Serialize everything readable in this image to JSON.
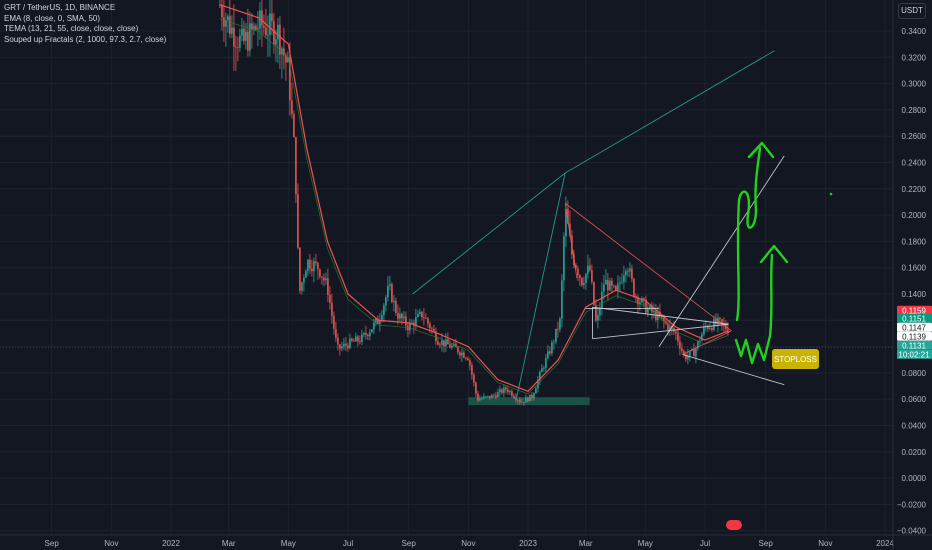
{
  "legend": {
    "symbol": "GRT / TetherUS, 1D, BINANCE",
    "ema": "EMA (8, close, 0, SMA, 50)",
    "tema": "TEMA (13, 21, 55, close, close, close)",
    "fractals": "Souped up Fractals (2, 1000, 97.3, 2.7, close)"
  },
  "currency": "USDT",
  "stoploss_label": "STOPLOSS",
  "colors": {
    "background": "#131722",
    "candle_up": "#26a69a",
    "candle_down": "#ef5350",
    "ema": "#ef5350",
    "tema": "#2e7d32",
    "annotation": "#22d11e",
    "stoploss_bg": "#c8b400",
    "support_zone": "#1b5e4f"
  },
  "chart_data": {
    "type": "candlestick",
    "y_ticks": [
      "0.3400",
      "0.3200",
      "0.3000",
      "0.2800",
      "0.2600",
      "0.2400",
      "0.2200",
      "0.2000",
      "0.1800",
      "0.1600",
      "0.1400",
      "0.1200",
      "0.1000",
      "0.0800",
      "0.0600",
      "0.0400",
      "0.0200",
      "0.0000",
      "-0.0200",
      "-0.0400"
    ],
    "ylim": [
      -0.04,
      0.355
    ],
    "x_ticks": [
      "Sep",
      "Nov",
      "2022",
      "Mar",
      "May",
      "Jul",
      "Sep",
      "Nov",
      "2023",
      "Mar",
      "May",
      "Jul",
      "Sep",
      "Nov",
      "2024"
    ],
    "price_tags": [
      {
        "value": "0.1159",
        "color": "#f23645"
      },
      {
        "value": "0.1151",
        "color": "#089981"
      },
      {
        "value": "0.1147",
        "color": "#ffffff"
      },
      {
        "value": "0.1139",
        "color": "#ffffff"
      },
      {
        "value": "0.1131",
        "color": "#26a69a"
      }
    ],
    "countdown": "10:02:21",
    "close_series": [
      [
        "2022-02-20",
        0.36
      ],
      [
        "2022-03-05",
        0.34
      ],
      [
        "2022-03-15",
        0.33
      ],
      [
        "2022-04-01",
        0.345
      ],
      [
        "2022-04-20",
        0.34
      ],
      [
        "2022-05-01",
        0.31
      ],
      [
        "2022-05-08",
        0.24
      ],
      [
        "2022-05-12",
        0.14
      ],
      [
        "2022-05-20",
        0.165
      ],
      [
        "2022-06-01",
        0.16
      ],
      [
        "2022-06-10",
        0.145
      ],
      [
        "2022-06-20",
        0.098
      ],
      [
        "2022-07-01",
        0.102
      ],
      [
        "2022-07-15",
        0.106
      ],
      [
        "2022-08-01",
        0.12
      ],
      [
        "2022-08-12",
        0.145
      ],
      [
        "2022-08-20",
        0.125
      ],
      [
        "2022-09-01",
        0.115
      ],
      [
        "2022-09-15",
        0.125
      ],
      [
        "2022-10-01",
        0.105
      ],
      [
        "2022-10-20",
        0.098
      ],
      [
        "2022-11-01",
        0.092
      ],
      [
        "2022-11-10",
        0.06
      ],
      [
        "2022-11-25",
        0.062
      ],
      [
        "2022-12-10",
        0.068
      ],
      [
        "2022-12-25",
        0.058
      ],
      [
        "2023-01-05",
        0.062
      ],
      [
        "2023-01-15",
        0.082
      ],
      [
        "2023-01-25",
        0.1
      ],
      [
        "2023-02-03",
        0.12
      ],
      [
        "2023-02-08",
        0.205
      ],
      [
        "2023-02-15",
        0.17
      ],
      [
        "2023-02-25",
        0.15
      ],
      [
        "2023-03-05",
        0.16
      ],
      [
        "2023-03-12",
        0.115
      ],
      [
        "2023-03-20",
        0.15
      ],
      [
        "2023-04-01",
        0.14
      ],
      [
        "2023-04-12",
        0.165
      ],
      [
        "2023-04-20",
        0.14
      ],
      [
        "2023-05-01",
        0.13
      ],
      [
        "2023-05-15",
        0.122
      ],
      [
        "2023-06-01",
        0.11
      ],
      [
        "2023-06-10",
        0.092
      ],
      [
        "2023-06-20",
        0.096
      ],
      [
        "2023-07-01",
        0.115
      ],
      [
        "2023-07-15",
        0.118
      ],
      [
        "2023-07-25",
        0.113
      ]
    ],
    "ema_series": [
      [
        "2022-02-20",
        0.36
      ],
      [
        "2022-04-01",
        0.35
      ],
      [
        "2022-05-01",
        0.33
      ],
      [
        "2022-05-20",
        0.25
      ],
      [
        "2022-06-10",
        0.18
      ],
      [
        "2022-07-01",
        0.14
      ],
      [
        "2022-08-01",
        0.12
      ],
      [
        "2022-09-01",
        0.118
      ],
      [
        "2022-10-01",
        0.11
      ],
      [
        "2022-11-01",
        0.1
      ],
      [
        "2022-12-01",
        0.075
      ],
      [
        "2023-01-01",
        0.066
      ],
      [
        "2023-02-01",
        0.09
      ],
      [
        "2023-03-01",
        0.13
      ],
      [
        "2023-04-01",
        0.143
      ],
      [
        "2023-05-01",
        0.135
      ],
      [
        "2023-06-01",
        0.115
      ],
      [
        "2023-07-01",
        0.105
      ],
      [
        "2023-07-25",
        0.112
      ]
    ],
    "support_zone": {
      "x1": "2022-11-01",
      "x2": "2023-03-05",
      "y1": 0.0555,
      "y2": 0.0615
    },
    "trendlines": [
      {
        "color": "#26a69a",
        "x1": "2022-09-05",
        "y1": 0.14,
        "x2": "2023-02-08",
        "y2": 0.232
      },
      {
        "color": "#26a69a",
        "x1": "2023-02-08",
        "y1": 0.232,
        "x2": "2023-09-10",
        "y2": 0.325
      },
      {
        "color": "#26a69a",
        "x1": "2022-12-20",
        "y1": 0.06,
        "x2": "2023-02-08",
        "y2": 0.232
      },
      {
        "color": "#ef5350",
        "x1": "2023-02-08",
        "y1": 0.209,
        "x2": "2023-07-28",
        "y2": 0.112
      },
      {
        "color": "#ef5350",
        "x1": "2023-06-08",
        "y1": 0.094,
        "x2": "2023-07-28",
        "y2": 0.112
      },
      {
        "color": "#ef5350",
        "x1": "2023-02-08",
        "y1": 0.209,
        "x2": "2023-02-20",
        "y2": 0.152
      },
      {
        "color": "#d1d4dc",
        "x1": "2023-03-08",
        "y1": 0.106,
        "x2": "2023-07-25",
        "y2": 0.117
      },
      {
        "color": "#d1d4dc",
        "x1": "2023-03-08",
        "y1": 0.106,
        "x2": "2023-03-08",
        "y2": 0.13
      },
      {
        "color": "#d1d4dc",
        "x1": "2023-03-08",
        "y1": 0.13,
        "x2": "2023-07-25",
        "y2": 0.117
      },
      {
        "color": "#d1d4dc",
        "x1": "2023-03-01",
        "y1": 0.129,
        "x2": "2023-05-15",
        "y2": 0.129
      },
      {
        "color": "#d1d4dc",
        "x1": "2023-05-15",
        "y1": 0.1,
        "x2": "2023-09-20",
        "y2": 0.245
      },
      {
        "color": "#d1d4dc",
        "x1": "2023-06-08",
        "y1": 0.094,
        "x2": "2023-09-20",
        "y2": 0.071
      }
    ]
  }
}
